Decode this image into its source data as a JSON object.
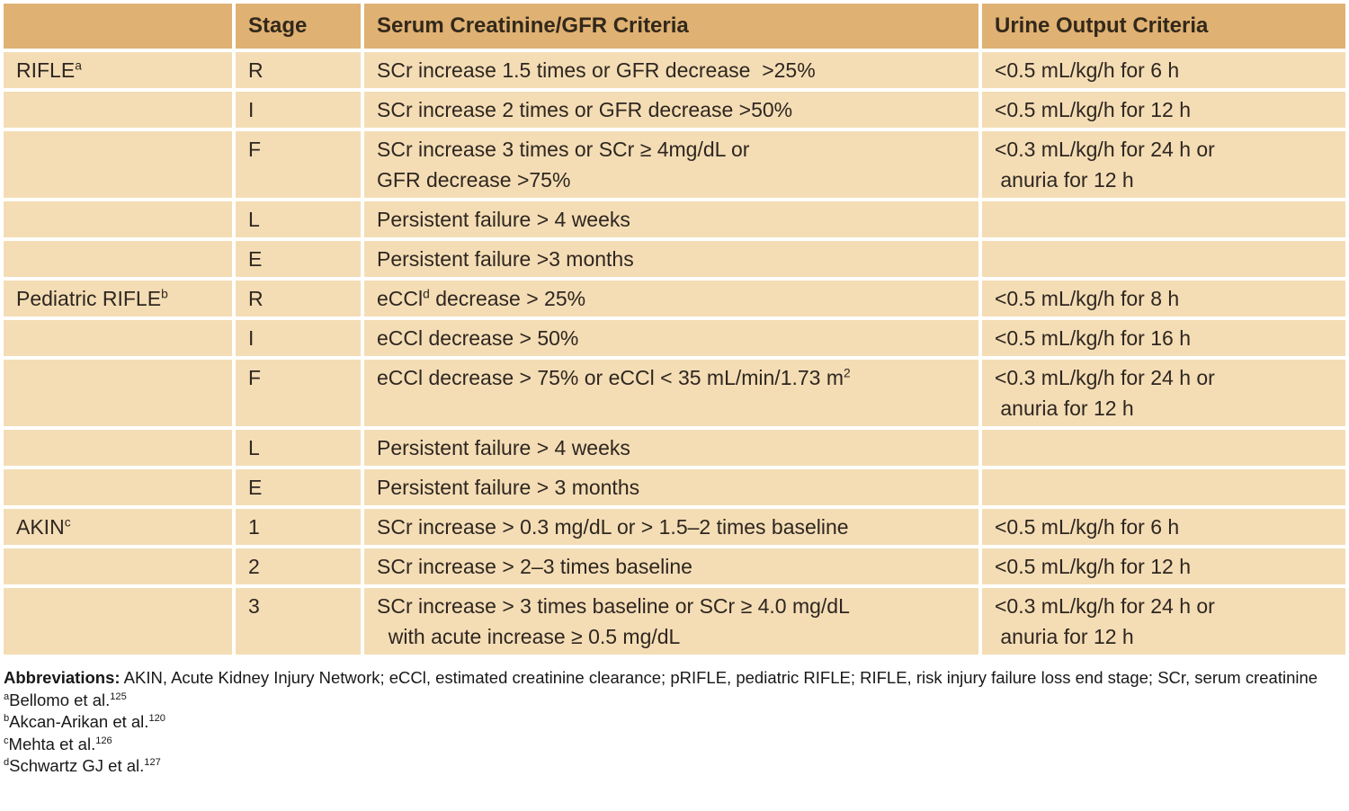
{
  "colors": {
    "header_bg": "#dfb173",
    "row_bg": "#f4ddb5",
    "divider": "#ffffff",
    "table_text": "#2e2620",
    "footer_text": "#181818"
  },
  "table": {
    "columns": [
      "",
      "Stage",
      "Serum Creatinine/GFR Criteria",
      "Urine Output Criteria"
    ],
    "rows": [
      {
        "system": [
          {
            "text": "RIFLE"
          },
          {
            "sup": "a"
          }
        ],
        "stage": "R",
        "criteria": [
          {
            "text": "SCr increase 1.5 times or GFR decrease  >25%"
          }
        ],
        "urine": [
          {
            "text": "<0.5 mL/kg/h for 6 h"
          }
        ]
      },
      {
        "system": [],
        "stage": "I",
        "criteria": [
          {
            "text": "SCr increase 2 times or GFR decrease >50%"
          }
        ],
        "urine": [
          {
            "text": "<0.5 mL/kg/h for 12 h"
          }
        ]
      },
      {
        "system": [],
        "stage": "F",
        "criteria": [
          {
            "text": "SCr increase 3 times or SCr ≥ 4mg/dL or\nGFR decrease >75%"
          }
        ],
        "urine": [
          {
            "text": "<0.3 mL/kg/h for 24 h or\n anuria for 12 h"
          }
        ]
      },
      {
        "system": [],
        "stage": "L",
        "criteria": [
          {
            "text": "Persistent failure > 4 weeks"
          }
        ],
        "urine": []
      },
      {
        "system": [],
        "stage": "E",
        "criteria": [
          {
            "text": "Persistent failure >3 months"
          }
        ],
        "urine": []
      },
      {
        "system": [
          {
            "text": "Pediatric RIFLE"
          },
          {
            "sup": "b"
          }
        ],
        "stage": "R",
        "criteria": [
          {
            "text": "eCCl"
          },
          {
            "sup": "d"
          },
          {
            "text": " decrease > 25%"
          }
        ],
        "urine": [
          {
            "text": "<0.5 mL/kg/h for 8 h"
          }
        ]
      },
      {
        "system": [],
        "stage": "I",
        "criteria": [
          {
            "text": "eCCl decrease > 50%"
          }
        ],
        "urine": [
          {
            "text": "<0.5 mL/kg/h for 16 h"
          }
        ]
      },
      {
        "system": [],
        "stage": "F",
        "criteria": [
          {
            "text": "eCCl decrease > 75% or eCCl < 35 mL/min/1.73 m"
          },
          {
            "sup": "2"
          }
        ],
        "urine": [
          {
            "text": "<0.3 mL/kg/h for 24 h or\n anuria for 12 h"
          }
        ]
      },
      {
        "system": [],
        "stage": "L",
        "criteria": [
          {
            "text": "Persistent failure > 4 weeks"
          }
        ],
        "urine": []
      },
      {
        "system": [],
        "stage": "E",
        "criteria": [
          {
            "text": "Persistent failure > 3 months"
          }
        ],
        "urine": []
      },
      {
        "system": [
          {
            "text": "AKIN"
          },
          {
            "sup": "c"
          }
        ],
        "stage": "1",
        "criteria": [
          {
            "text": "SCr increase > 0.3 mg/dL or > 1.5–2 times baseline"
          }
        ],
        "urine": [
          {
            "text": "<0.5 mL/kg/h for 6 h"
          }
        ]
      },
      {
        "system": [],
        "stage": "2",
        "criteria": [
          {
            "text": "SCr increase > 2–3 times baseline"
          }
        ],
        "urine": [
          {
            "text": "<0.5 mL/kg/h for 12 h"
          }
        ]
      },
      {
        "system": [],
        "stage": "3",
        "criteria": [
          {
            "text": "SCr increase > 3 times baseline or SCr ≥ 4.0 mg/dL\n  with acute increase ≥ 0.5 mg/dL"
          }
        ],
        "urine": [
          {
            "text": "<0.3 mL/kg/h for 24 h or\n anuria for 12 h"
          }
        ]
      }
    ]
  },
  "footer": {
    "abbreviations_label": "Abbreviations:",
    "abbreviations_text": " AKIN, Acute Kidney Injury Network; eCCl, estimated creatinine clearance; pRIFLE, pediatric RIFLE; RIFLE, risk injury failure loss end stage; SCr, serum creatinine",
    "footnotes": [
      {
        "marker": "a",
        "text": "Bellomo et al.",
        "ref": "125"
      },
      {
        "marker": "b",
        "text": "Akcan-Arikan et al.",
        "ref": "120"
      },
      {
        "marker": "c",
        "text": "Mehta et al.",
        "ref": "126"
      },
      {
        "marker": "d",
        "text": "Schwartz GJ et al.",
        "ref": "127"
      }
    ]
  }
}
